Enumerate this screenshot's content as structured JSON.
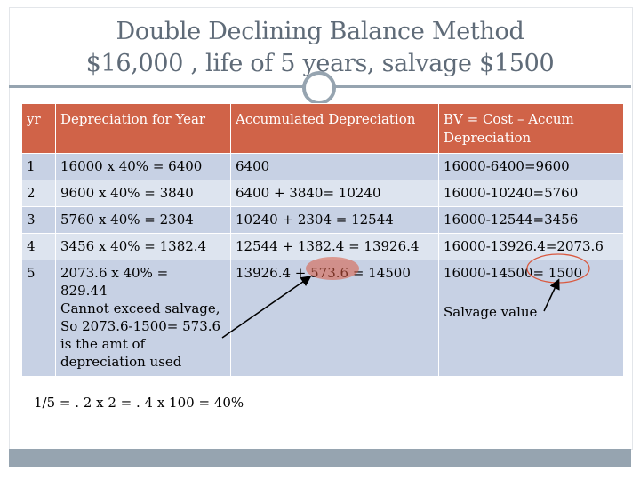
{
  "title": {
    "line1": "Double Declining Balance Method",
    "line2": "$16,000 , life of 5 years, salvage $1500"
  },
  "table": {
    "headers": [
      "yr",
      "Depreciation for Year",
      "Accumulated Depreciation",
      "BV = Cost – Accum Depreciation"
    ],
    "rows": [
      [
        "1",
        "16000 x 40% = 6400",
        "6400",
        "16000-6400=9600"
      ],
      [
        "2",
        "9600 x 40% = 3840",
        "6400 + 3840= 10240",
        "16000-10240=5760"
      ],
      [
        "3",
        "5760 x 40% = 2304",
        "10240 + 2304 = 12544",
        "16000-12544=3456"
      ],
      [
        "4",
        "3456 x 40% = 1382.4",
        "12544 + 1382.4 = 13926.4",
        "16000-13926.4=2073.6"
      ]
    ],
    "last_row": {
      "yr": "5",
      "dep_lines": [
        "2073.6 x 40% =",
        "829.44",
        "Cannot exceed salvage,",
        "So 2073.6-1500= 573.6",
        "is the amt of",
        "depreciation used"
      ],
      "accum": "13926.4 + 573.6 = 14500",
      "bv": "16000-14500= 1500",
      "note": "Salvage value"
    }
  },
  "formula": "1/5 = . 2 x 2 = . 4 x 100 = 40%",
  "colors": {
    "header_bg": "#d06348",
    "cell_bg": "#c7d1e4",
    "accent": "#96a4b0",
    "title_text": "#5f6b78",
    "annotation": "#c0392b"
  }
}
